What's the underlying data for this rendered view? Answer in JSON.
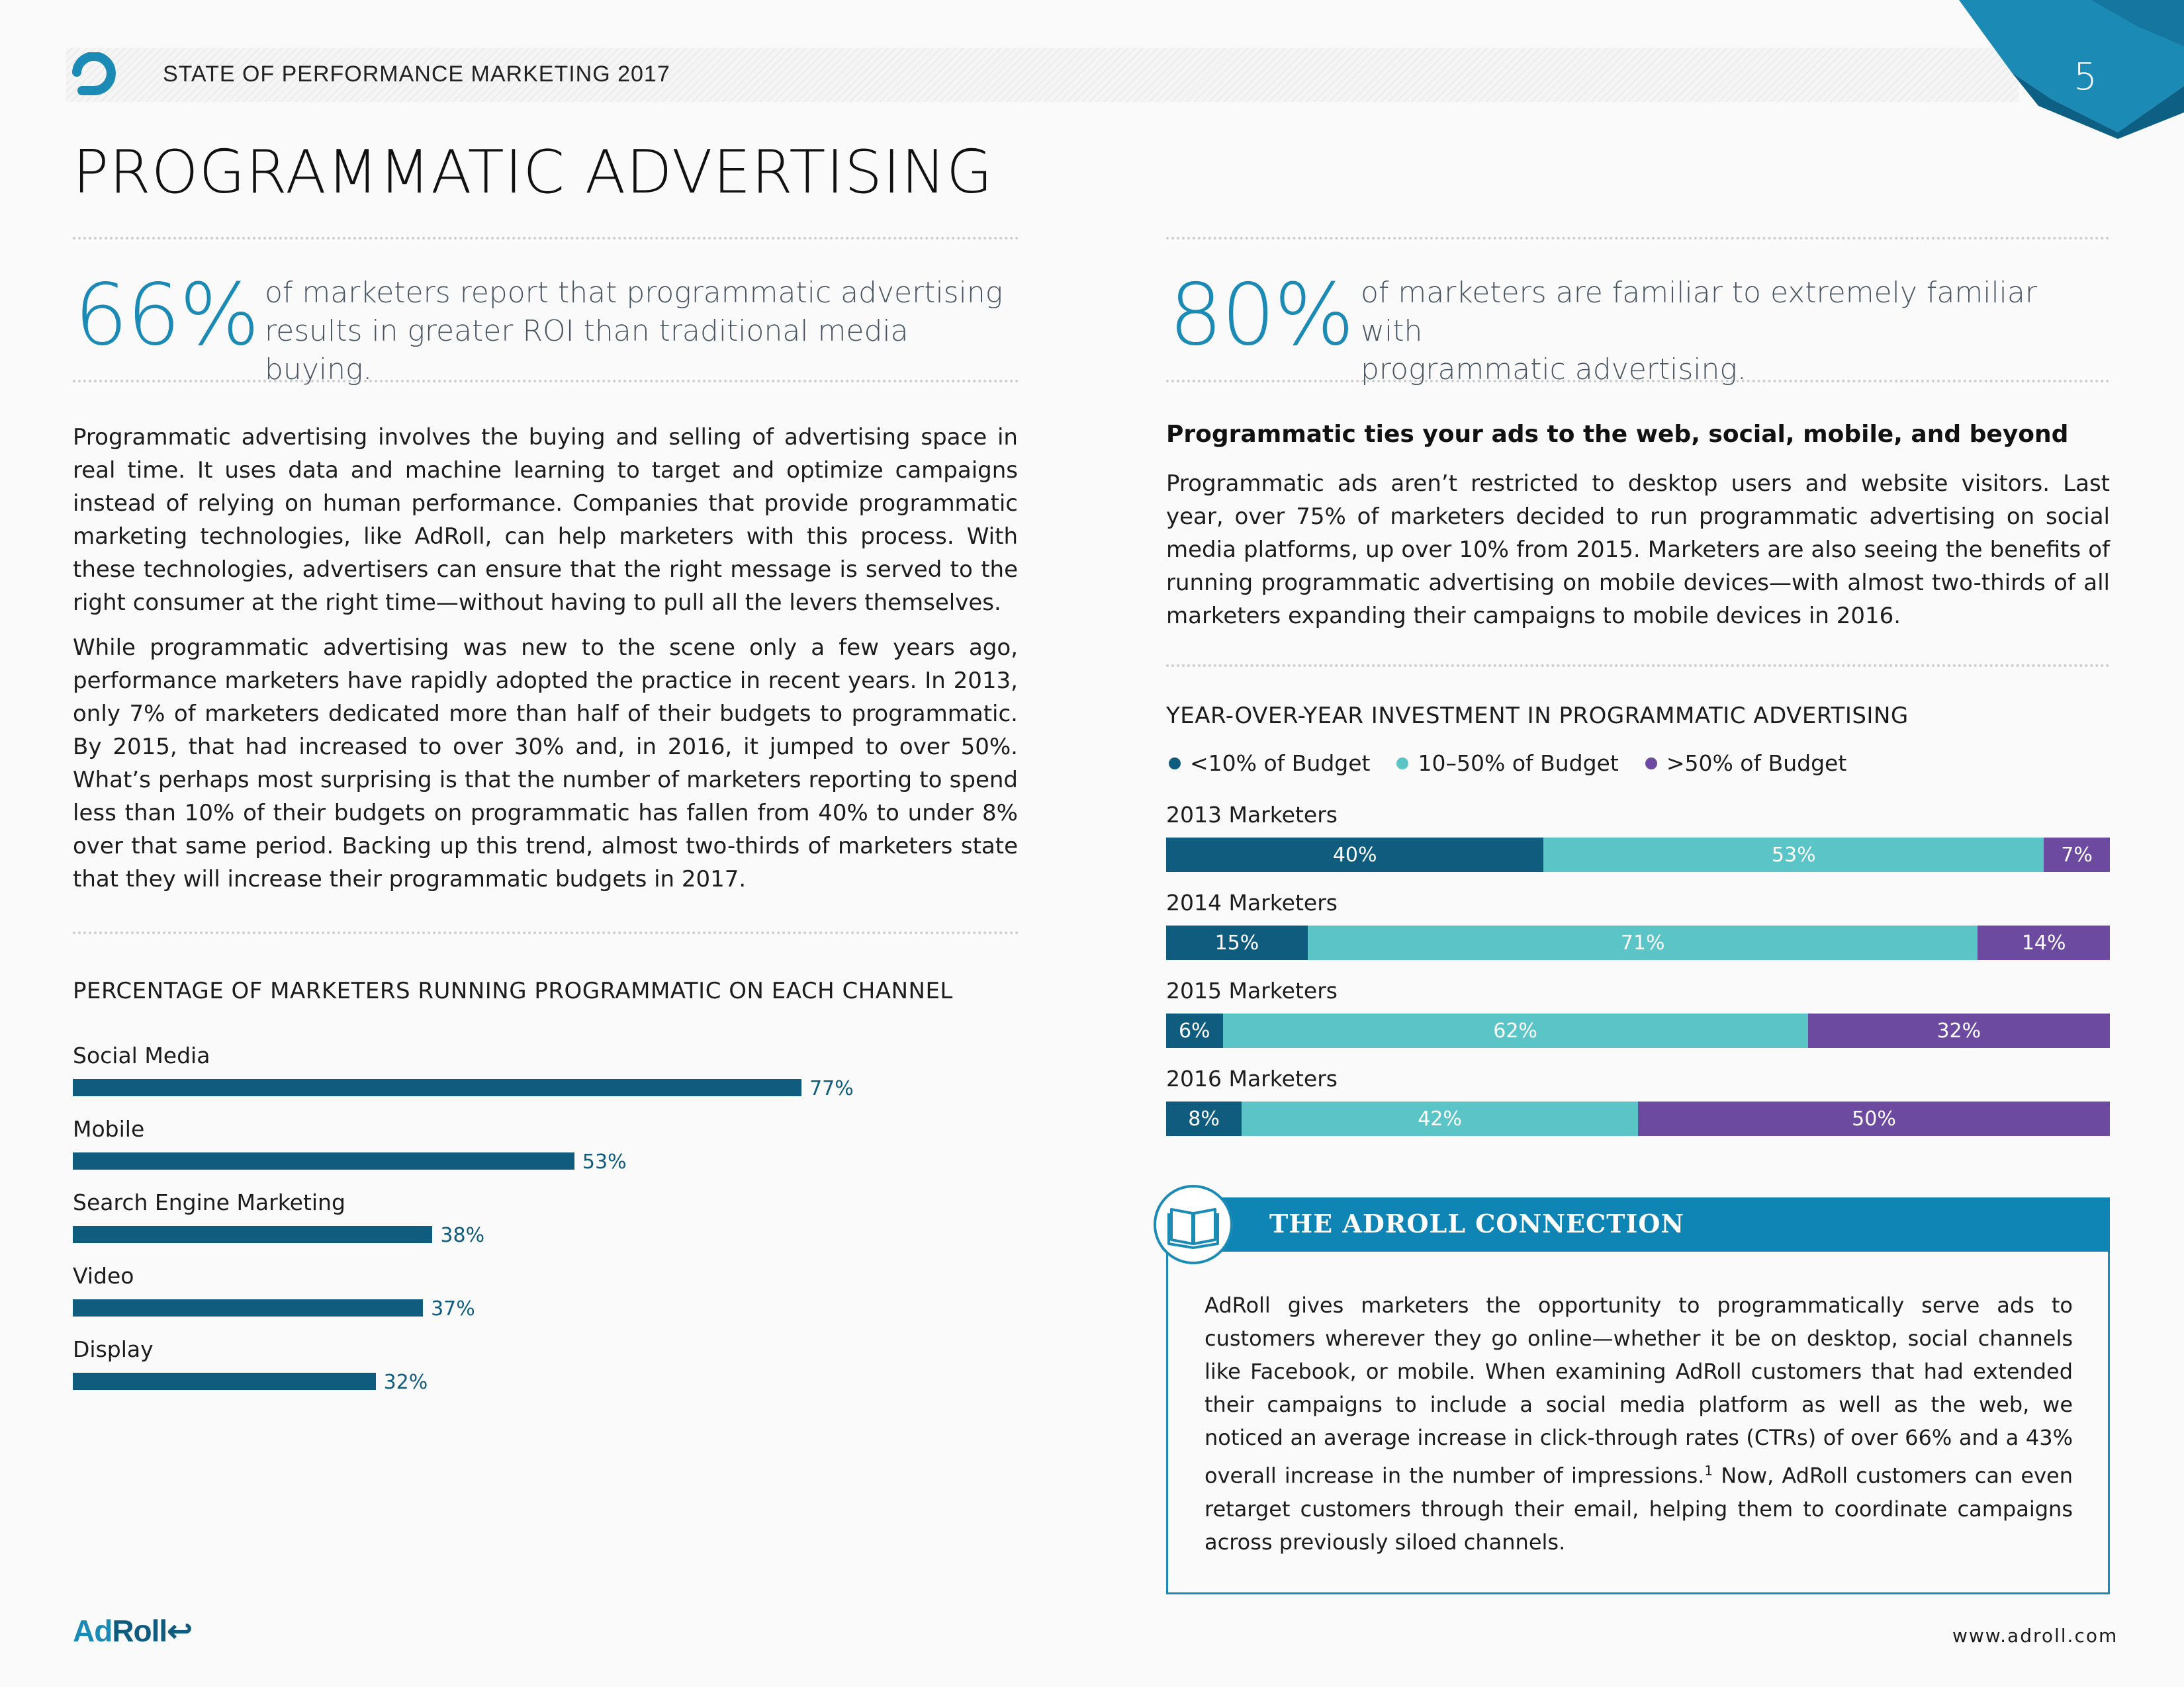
{
  "header": {
    "title": "STATE OF PERFORMANCE MARKETING 2017",
    "page_number": "5",
    "accent_color": "#1b8bb5"
  },
  "page_title": "PROGRAMMATIC ADVERTISING",
  "stats": [
    {
      "value": "66%",
      "text_line1": "of marketers report that programmatic advertising",
      "text_line2": "results in greater ROI than traditional media buying."
    },
    {
      "value": "80%",
      "text_line1": "of marketers are familiar to extremely familiar with",
      "text_line2": "programmatic advertising."
    }
  ],
  "left_body": {
    "p1": "Programmatic advertising involves the buying and selling of advertising space in real time. It uses data and machine learning to target and optimize campaigns instead of relying on human performance. Companies that provide programmatic marketing technologies, like AdRoll, can help marketers with this process. With these technologies, advertisers can ensure that the right message is served to the right consumer at the right time—without having to pull all the levers themselves.",
    "p2": "While programmatic advertising was new to the scene only a few years ago, performance marketers have rapidly adopted the practice in recent years. In 2013, only 7% of marketers dedicated more than half of their budgets to programmatic. By 2015, that had increased to over 30% and, in 2016, it jumped to over 50%. What’s perhaps most surprising is that the number of marketers reporting to spend less than 10% of their budgets on programmatic has fallen from 40% to under 8% over that same period. Backing up this trend, almost two-thirds of marketers state that they will increase their programmatic budgets in 2017."
  },
  "right_body": {
    "heading": "Programmatic ties your ads to the web, social, mobile, and beyond",
    "p1": "Programmatic ads aren’t restricted to desktop users and website visitors. Last year, over 75% of marketers decided to run programmatic advertising on social media platforms, up over 10% from 2015. Marketers are also seeing the benefits of running programmatic advertising on mobile devices—with almost two-thirds of all marketers expanding their campaigns to mobile devices in 2016."
  },
  "chart_data": [
    {
      "type": "bar",
      "orientation": "horizontal",
      "title": "PERCENTAGE OF MARKETERS RUNNING PROGRAMMATIC ON EACH CHANNEL",
      "categories": [
        "Social Media",
        "Mobile",
        "Search Engine Marketing",
        "Video",
        "Display"
      ],
      "values": [
        77,
        53,
        38,
        37,
        32
      ],
      "value_labels": [
        "77%",
        "53%",
        "38%",
        "37%",
        "32%"
      ],
      "xlim": [
        0,
        100
      ],
      "color": "#0f5c7e"
    },
    {
      "type": "bar",
      "orientation": "horizontal",
      "stacked": true,
      "title": "YEAR-OVER-YEAR INVESTMENT IN PROGRAMMATIC ADVERTISING",
      "categories": [
        "2013 Marketers",
        "2014 Marketers",
        "2015 Marketers",
        "2016 Marketers"
      ],
      "series": [
        {
          "name": "<10% of Budget",
          "color": "#0f5c7e",
          "values": [
            40,
            15,
            6,
            8
          ],
          "labels": [
            "40%",
            "15%",
            "6%",
            "8%"
          ]
        },
        {
          "name": "10–50% of Budget",
          "color": "#5bc4c6",
          "values": [
            53,
            71,
            62,
            42
          ],
          "labels": [
            "53%",
            "71%",
            "62%",
            "42%"
          ]
        },
        {
          "name": ">50% of Budget",
          "color": "#6c4aa0",
          "values": [
            7,
            14,
            32,
            50
          ],
          "labels": [
            "7%",
            "14%",
            "32%",
            "50%"
          ]
        }
      ],
      "xlim": [
        0,
        100
      ]
    }
  ],
  "callout": {
    "title": "THE ADROLL CONNECTION",
    "icon": "book-icon",
    "body_before_sup": "AdRoll gives marketers the opportunity to programmatically serve ads to customers wherever they go online—whether it be on desktop, social channels like Facebook, or mobile. When examining AdRoll customers that had extended their campaigns to include a social media platform as well as the web, we noticed an average increase in click-through rates (CTRs) of over 66% and a 43% overall increase in the number of impressions.",
    "footnote_mark": "1",
    "body_after_sup": " Now, AdRoll customers can even retarget customers through their email, helping them to coordinate campaigns across previously siloed channels."
  },
  "footer": {
    "logo_part1": "Ad",
    "logo_part2": "Roll",
    "url": "www.adroll.com"
  }
}
